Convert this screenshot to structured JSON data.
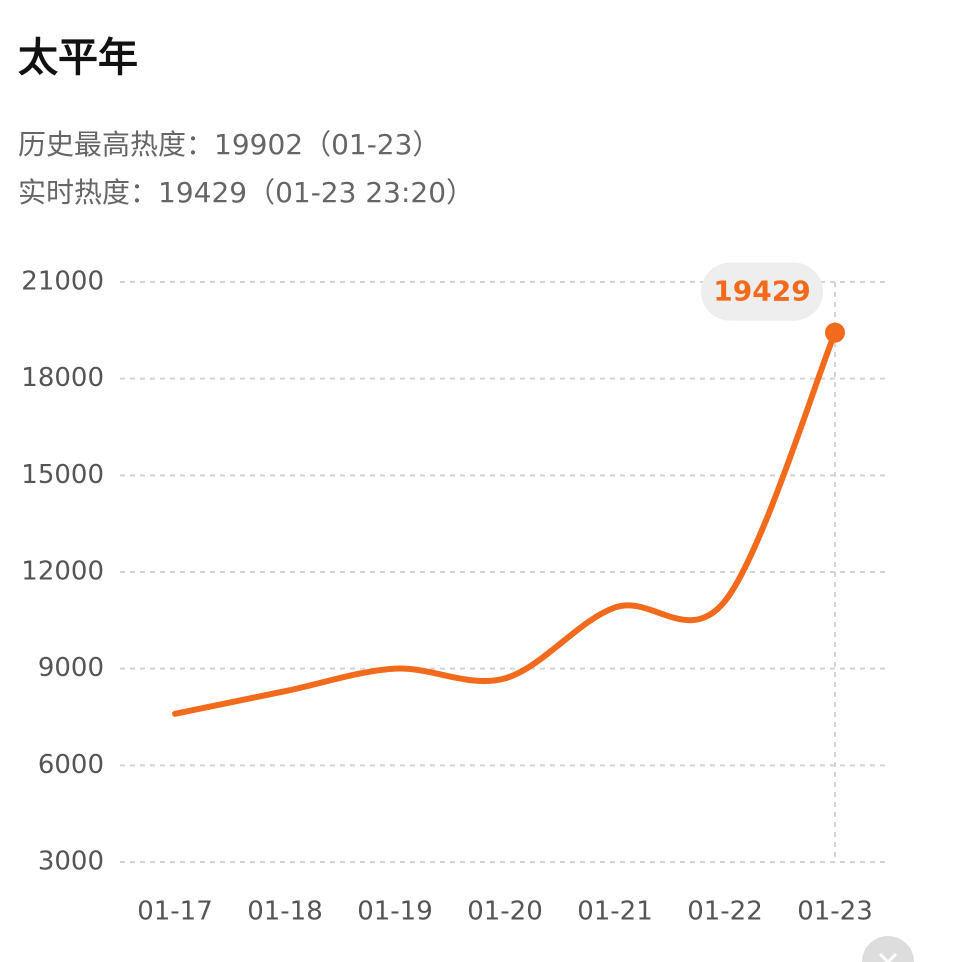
{
  "chart_data": {
    "type": "line",
    "title": "太平年",
    "subtitle": [
      "历史最高热度：19902（01-23）",
      "实时热度：19429（01-23 23:20）"
    ],
    "categories": [
      "01-17",
      "01-18",
      "01-19",
      "01-20",
      "01-21",
      "01-22",
      "01-23"
    ],
    "values": [
      7600,
      8300,
      9000,
      8700,
      10900,
      11100,
      19429
    ],
    "color": "#f26b1d",
    "ylim": [
      3000,
      21000
    ],
    "yticks": [
      3000,
      6000,
      9000,
      12000,
      15000,
      18000,
      21000
    ],
    "grid": true
  }
}
